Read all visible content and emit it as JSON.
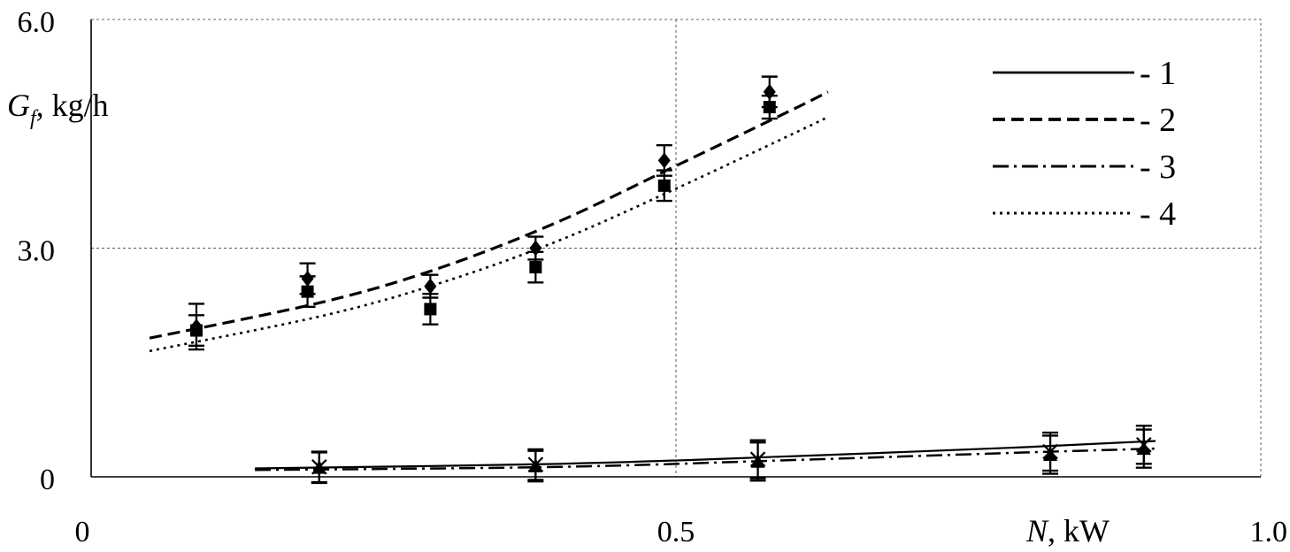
{
  "chart_data": {
    "type": "scatter",
    "xlabel": {
      "var": "N",
      "unit": ", kW"
    },
    "ylabel": {
      "var": "G",
      "sub": "f",
      "unit": ", kg/h"
    },
    "xlim": [
      0,
      1.0
    ],
    "ylim": [
      0,
      6.0
    ],
    "xticks": [
      {
        "value": 0,
        "label": "0"
      },
      {
        "value": 0.5,
        "label": "0.5"
      },
      {
        "value": 1.0,
        "label": "1.0"
      }
    ],
    "yticks": [
      {
        "value": 0,
        "label": "0"
      },
      {
        "value": 3.0,
        "label": "3.0"
      },
      {
        "value": 6.0,
        "label": "6.0"
      }
    ],
    "grid": true,
    "legend_position": "top-right",
    "legend": [
      {
        "label": "- 1",
        "style": "solid"
      },
      {
        "label": "- 2",
        "style": "dashed"
      },
      {
        "label": "- 3",
        "style": "dashdot"
      },
      {
        "label": "- 4",
        "style": "dotted"
      }
    ],
    "curves": [
      {
        "style": "dashed",
        "points": [
          [
            0.05,
            1.82
          ],
          [
            0.2,
            2.3
          ],
          [
            0.3,
            2.75
          ],
          [
            0.4,
            3.35
          ],
          [
            0.5,
            4.08
          ],
          [
            0.6,
            4.82
          ],
          [
            0.63,
            5.05
          ]
        ]
      },
      {
        "style": "dotted",
        "points": [
          [
            0.05,
            1.65
          ],
          [
            0.2,
            2.12
          ],
          [
            0.3,
            2.55
          ],
          [
            0.4,
            3.1
          ],
          [
            0.5,
            3.78
          ],
          [
            0.6,
            4.5
          ],
          [
            0.63,
            4.72
          ]
        ]
      },
      {
        "style": "solid",
        "points": [
          [
            0.14,
            0.11
          ],
          [
            0.4,
            0.17
          ],
          [
            0.6,
            0.27
          ],
          [
            0.8,
            0.39
          ],
          [
            0.91,
            0.47
          ]
        ]
      },
      {
        "style": "dashdot",
        "points": [
          [
            0.14,
            0.09
          ],
          [
            0.4,
            0.13
          ],
          [
            0.6,
            0.22
          ],
          [
            0.8,
            0.32
          ],
          [
            0.91,
            0.37
          ]
        ]
      }
    ],
    "series": [
      {
        "marker": "diamond",
        "points": [
          {
            "x": 0.09,
            "y": 1.97,
            "err": 0.3
          },
          {
            "x": 0.185,
            "y": 2.6,
            "err": 0.2
          },
          {
            "x": 0.29,
            "y": 2.5,
            "err": 0.15
          },
          {
            "x": 0.38,
            "y": 3.0,
            "err": 0.15
          },
          {
            "x": 0.49,
            "y": 4.15,
            "err": 0.2
          },
          {
            "x": 0.58,
            "y": 5.05,
            "err": 0.2
          }
        ]
      },
      {
        "marker": "square",
        "points": [
          {
            "x": 0.09,
            "y": 1.92,
            "err": 0.2
          },
          {
            "x": 0.185,
            "y": 2.43,
            "err": 0.2
          },
          {
            "x": 0.29,
            "y": 2.2,
            "err": 0.2
          },
          {
            "x": 0.38,
            "y": 2.75,
            "err": 0.2
          },
          {
            "x": 0.49,
            "y": 3.82,
            "err": 0.2
          },
          {
            "x": 0.58,
            "y": 4.85,
            "err": 0.15
          }
        ]
      },
      {
        "marker": "triangle",
        "points": [
          {
            "x": 0.195,
            "y": 0.12,
            "err": 0.2
          },
          {
            "x": 0.38,
            "y": 0.14,
            "err": 0.2
          },
          {
            "x": 0.57,
            "y": 0.2,
            "err": 0.25
          },
          {
            "x": 0.82,
            "y": 0.29,
            "err": 0.25
          },
          {
            "x": 0.9,
            "y": 0.37,
            "err": 0.25
          }
        ]
      },
      {
        "marker": "cross",
        "points": [
          {
            "x": 0.195,
            "y": 0.13,
            "err": 0.2
          },
          {
            "x": 0.38,
            "y": 0.16,
            "err": 0.2
          },
          {
            "x": 0.57,
            "y": 0.23,
            "err": 0.25
          },
          {
            "x": 0.82,
            "y": 0.33,
            "err": 0.25
          },
          {
            "x": 0.9,
            "y": 0.42,
            "err": 0.25
          }
        ]
      }
    ]
  }
}
